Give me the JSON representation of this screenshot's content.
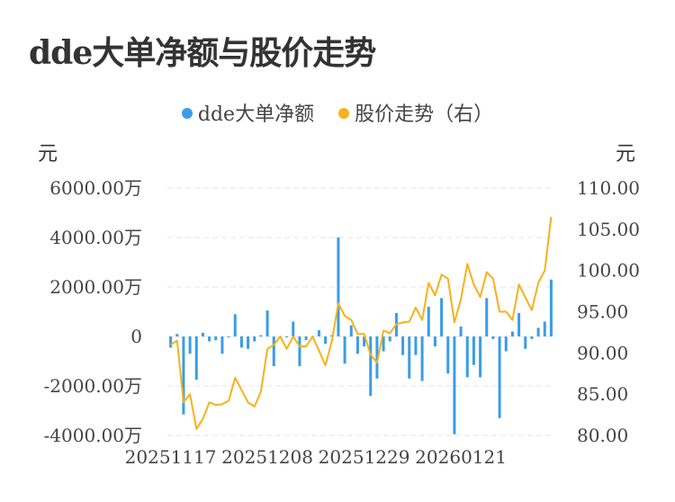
{
  "title": "dde大单净额与股价走势",
  "legend": [
    {
      "label": "dde大单净额",
      "color": "#3a9de6"
    },
    {
      "label": "股价走势（右）",
      "color": "#f5b21b"
    }
  ],
  "chart_data": {
    "type": "bar+line",
    "left_unit": "元",
    "right_unit": "元",
    "left_ticks": [
      "6000.00万",
      "4000.00万",
      "2000.00万",
      "0",
      "-2000.00万",
      "-4000.00万"
    ],
    "right_ticks": [
      "110.00",
      "105.00",
      "100.00",
      "95.00",
      "90.00",
      "85.00",
      "80.00"
    ],
    "ylim_left": [
      -4000,
      6000
    ],
    "ylim_right": [
      80,
      110
    ],
    "x_tick_labels": [
      {
        "label": "20251117",
        "index": 0
      },
      {
        "label": "20251208",
        "index": 15
      },
      {
        "label": "20251229",
        "index": 30
      },
      {
        "label": "20260121",
        "index": 45
      }
    ],
    "series": [
      {
        "name": "dde大单净额",
        "type": "bar",
        "values": [
          -450,
          100,
          -3150,
          -700,
          -1750,
          150,
          -200,
          -150,
          -700,
          0,
          900,
          -450,
          -500,
          -200,
          50,
          1050,
          -1200,
          0,
          0,
          600,
          -1200,
          -150,
          0,
          250,
          -300,
          50,
          4000,
          -1100,
          450,
          -700,
          -400,
          -2400,
          -1700,
          -600,
          -200,
          950,
          -750,
          -1700,
          -750,
          -1800,
          1200,
          -400,
          1550,
          -1500,
          -3950,
          400,
          -1650,
          -1150,
          -1650,
          1550,
          -100,
          -3300,
          -600,
          200,
          950,
          -500,
          -100,
          350,
          600,
          2300
        ],
        "color": "#3a9de6"
      },
      {
        "name": "股价走势（右）",
        "type": "line",
        "axis": "right",
        "values": [
          91.0,
          91.5,
          84.0,
          85.0,
          80.8,
          82.0,
          84.0,
          83.7,
          83.8,
          84.2,
          87.0,
          85.5,
          84.0,
          83.5,
          85.3,
          90.5,
          91.0,
          92.0,
          90.5,
          92.0,
          90.8,
          90.8,
          92.0,
          90.3,
          88.5,
          91.5,
          96.0,
          94.5,
          94.0,
          92.3,
          92.3,
          89.8,
          88.8,
          92.7,
          92.4,
          93.5,
          93.7,
          93.8,
          95.5,
          94.0,
          98.5,
          97.0,
          99.5,
          99.0,
          93.7,
          96.5,
          100.8,
          98.3,
          96.8,
          99.8,
          99.0,
          95.0,
          95.0,
          94.0,
          98.3,
          96.7,
          95.2,
          98.5,
          100.0,
          106.5
        ],
        "color": "#f5b21b"
      }
    ]
  }
}
